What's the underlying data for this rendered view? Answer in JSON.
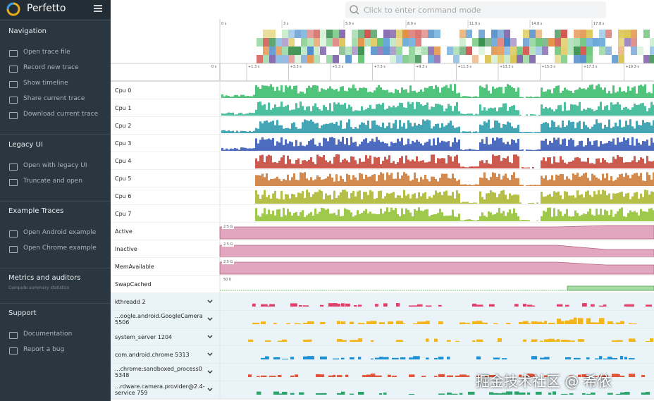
{
  "app": {
    "title": "Perfetto"
  },
  "search": {
    "placeholder": "Click to enter command mode"
  },
  "sidebar": {
    "sections": [
      {
        "title": "Navigation",
        "items": [
          "Open trace file",
          "Record new trace",
          "Show timeline",
          "Share current trace",
          "Download current trace"
        ]
      },
      {
        "title": "Legacy UI",
        "items": [
          "Open with legacy UI",
          "Truncate and open"
        ]
      },
      {
        "title": "Example Traces",
        "items": [
          "Open Android example",
          "Open Chrome example"
        ]
      },
      {
        "title": "Metrics and auditors",
        "subtitle": "Compute summary statistics",
        "items": []
      },
      {
        "title": "Support",
        "items": [
          "Documentation",
          "Report a bug"
        ]
      }
    ]
  },
  "overview": {
    "ticks": [
      "0 s",
      "3 s",
      "5.9 s",
      "8.9 s",
      "11.9 s",
      "14.8 s",
      "17.8 s"
    ]
  },
  "ruler": {
    "ticks": [
      "0 s",
      "+1.3 s",
      "+3.3 s",
      "+5.3 s",
      "+7.3 s",
      "+9.3 s",
      "+11.3 s",
      "+13.3 s",
      "+15.3 s",
      "+17.3 s",
      "+19.3 s"
    ]
  },
  "cpu_tracks": [
    {
      "name": "Cpu 0",
      "color": "#4fc47a"
    },
    {
      "name": "Cpu 1",
      "color": "#4bbf9e"
    },
    {
      "name": "Cpu 2",
      "color": "#44a6b5"
    },
    {
      "name": "Cpu 3",
      "color": "#4d6cc0"
    },
    {
      "name": "Cpu 4",
      "color": "#cd5a4f"
    },
    {
      "name": "Cpu 5",
      "color": "#d38a4f"
    },
    {
      "name": "Cpu 6",
      "color": "#b6bf47"
    },
    {
      "name": "Cpu 7",
      "color": "#9fc94a"
    }
  ],
  "counter_tracks": [
    {
      "name": "Active",
      "scale_label": "2.5 G"
    },
    {
      "name": "Inactive",
      "scale_label": "2.5 G"
    },
    {
      "name": "MemAvailable",
      "scale_label": "2.5 G"
    },
    {
      "name": "SwapCached",
      "scale_label": "50 K"
    }
  ],
  "process_tracks": [
    {
      "name": "kthreadd 2",
      "color": "#e0406a"
    },
    {
      "name": "...oogle.android.GoogleCamera 5506",
      "color": "#f2b51d"
    },
    {
      "name": "system_server 1204",
      "color": "#f2b51d"
    },
    {
      "name": "com.android.chrome 5313",
      "color": "#1e8fd0"
    },
    {
      "name": "...chrome:sandboxed_process0 5348",
      "color": "#e0563a"
    },
    {
      "name": "...rdware.camera.provider@2.4-service 759",
      "color": "#2aa26a"
    }
  ],
  "watermark": "掘金技术社区 @ 希依"
}
